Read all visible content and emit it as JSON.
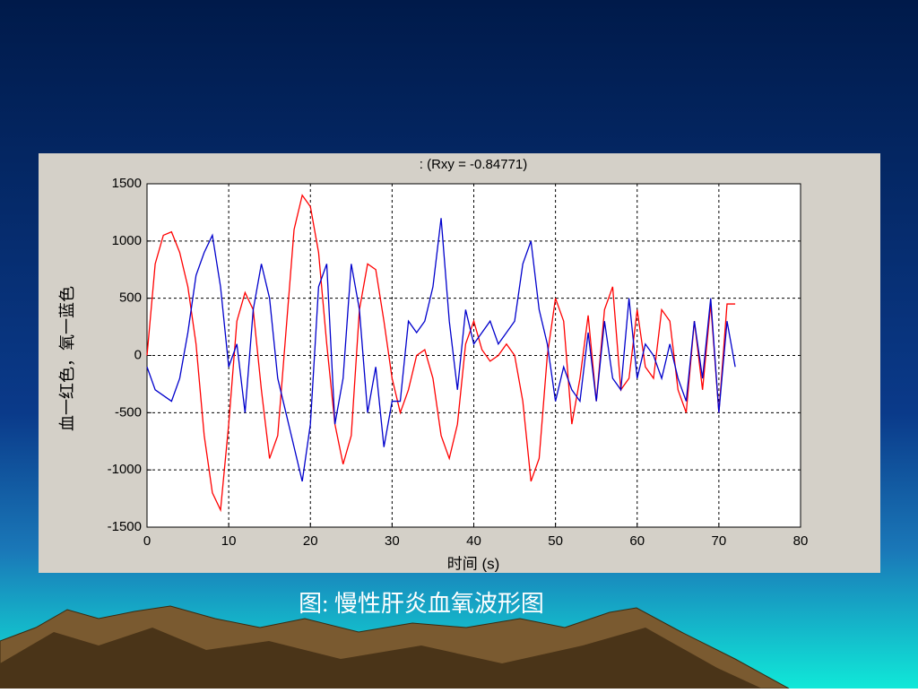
{
  "chart_data": {
    "type": "line",
    "title": ":      (Rxy = -0.84771)",
    "xlabel": "时间 (s)",
    "ylabel": "血一红色，氧一蓝色",
    "x": [
      0,
      1,
      2,
      3,
      4,
      5,
      6,
      7,
      8,
      9,
      10,
      11,
      12,
      13,
      14,
      15,
      16,
      17,
      18,
      19,
      20,
      21,
      22,
      23,
      24,
      25,
      26,
      27,
      28,
      29,
      30,
      31,
      32,
      33,
      34,
      35,
      36,
      37,
      38,
      39,
      40,
      41,
      42,
      43,
      44,
      45,
      46,
      47,
      48,
      49,
      50,
      51,
      52,
      53,
      54,
      55,
      56,
      57,
      58,
      59,
      60,
      61,
      62,
      63,
      64,
      65,
      66,
      67,
      68,
      69,
      70,
      71,
      72
    ],
    "series": [
      {
        "name": "血",
        "color": "#ff0000",
        "values": [
          0,
          800,
          1050,
          1080,
          900,
          600,
          100,
          -700,
          -1200,
          -1350,
          -600,
          300,
          550,
          400,
          -300,
          -900,
          -700,
          200,
          1100,
          1400,
          1300,
          900,
          100,
          -600,
          -950,
          -700,
          400,
          800,
          750,
          300,
          -200,
          -500,
          -300,
          0,
          50,
          -200,
          -700,
          -900,
          -600,
          100,
          300,
          50,
          -50,
          0,
          100,
          0,
          -400,
          -1100,
          -900,
          0,
          500,
          300,
          -600,
          -200,
          350,
          -400,
          400,
          600,
          -300,
          -200,
          400,
          -100,
          -200,
          400,
          300,
          -300,
          -500,
          300,
          -300,
          450,
          -500,
          450,
          450
        ]
      },
      {
        "name": "氧",
        "color": "#0000cc",
        "values": [
          -100,
          -300,
          -350,
          -400,
          -200,
          200,
          700,
          900,
          1050,
          600,
          -100,
          100,
          -500,
          400,
          800,
          500,
          -200,
          -500,
          -800,
          -1100,
          -600,
          600,
          800,
          -600,
          -200,
          800,
          400,
          -500,
          -100,
          -800,
          -400,
          -400,
          300,
          200,
          300,
          600,
          1200,
          300,
          -300,
          400,
          100,
          200,
          300,
          100,
          200,
          300,
          800,
          1000,
          400,
          100,
          -400,
          -100,
          -300,
          -400,
          200,
          -400,
          300,
          -200,
          -300,
          500,
          -200,
          100,
          0,
          -200,
          100,
          -200,
          -400,
          300,
          -200,
          500,
          -500,
          300,
          -100
        ]
      }
    ],
    "xlim": [
      0,
      80
    ],
    "xticks": [
      0,
      10,
      20,
      30,
      40,
      50,
      60,
      70,
      80
    ],
    "ylim": [
      -1500,
      1500
    ],
    "yticks": [
      -1500,
      -1000,
      -500,
      0,
      500,
      1000,
      1500
    ],
    "grid": true
  },
  "caption": "图: 慢性肝炎血氧波形图"
}
